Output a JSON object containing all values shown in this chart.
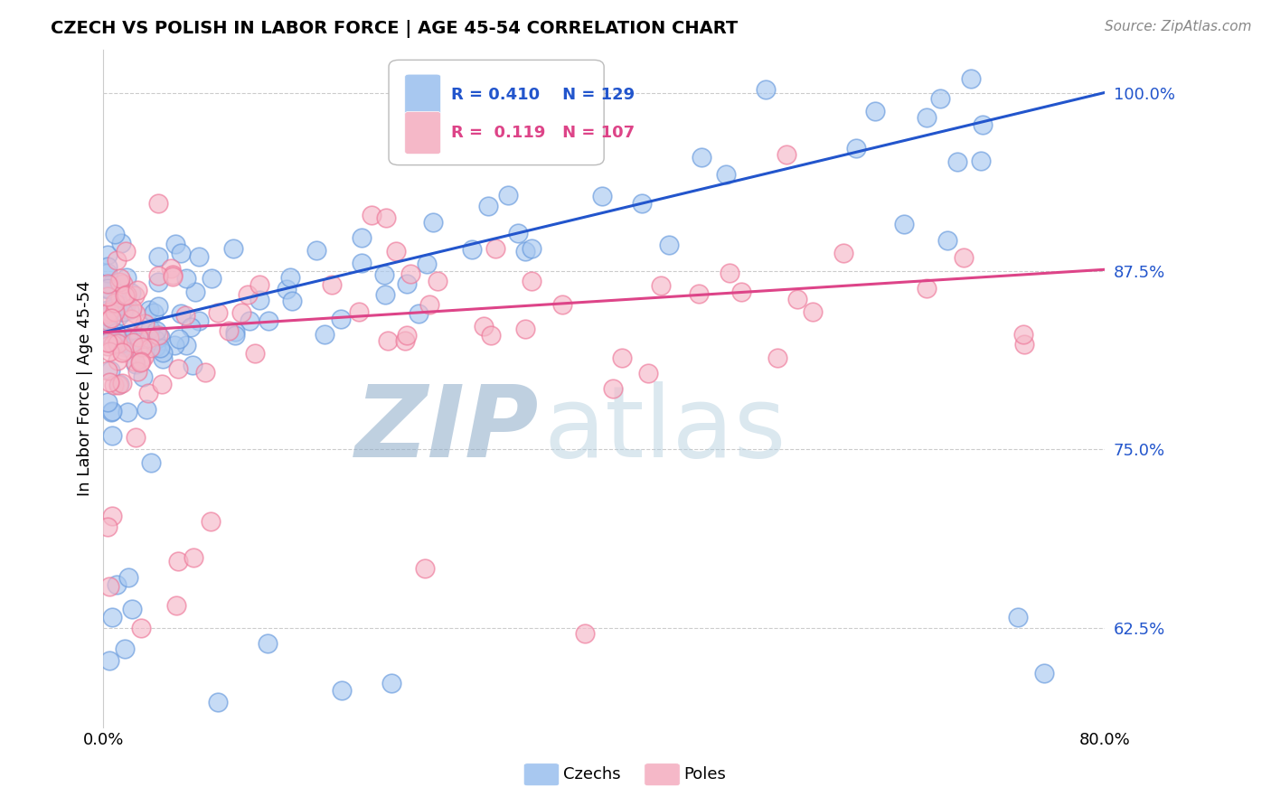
{
  "title": "CZECH VS POLISH IN LABOR FORCE | AGE 45-54 CORRELATION CHART",
  "source": "Source: ZipAtlas.com",
  "ylabel": "In Labor Force | Age 45-54",
  "ytick_labels": [
    "62.5%",
    "75.0%",
    "87.5%",
    "100.0%"
  ],
  "ytick_values": [
    0.625,
    0.75,
    0.875,
    1.0
  ],
  "xmin": 0.0,
  "xmax": 0.8,
  "ymin": 0.555,
  "ymax": 1.03,
  "blue_color": "#A8C8F0",
  "pink_color": "#F5B8C8",
  "blue_line_color": "#2255CC",
  "pink_line_color": "#DD4488",
  "blue_scatter_edge": "#6699DD",
  "pink_scatter_edge": "#EE7799",
  "watermark_zip_color": "#8BAAC8",
  "watermark_atlas_color": "#A8C8D8",
  "grid_color": "#CCCCCC",
  "title_fontsize": 14,
  "source_fontsize": 11,
  "tick_fontsize": 13,
  "ylabel_fontsize": 13,
  "legend_fontsize": 13
}
